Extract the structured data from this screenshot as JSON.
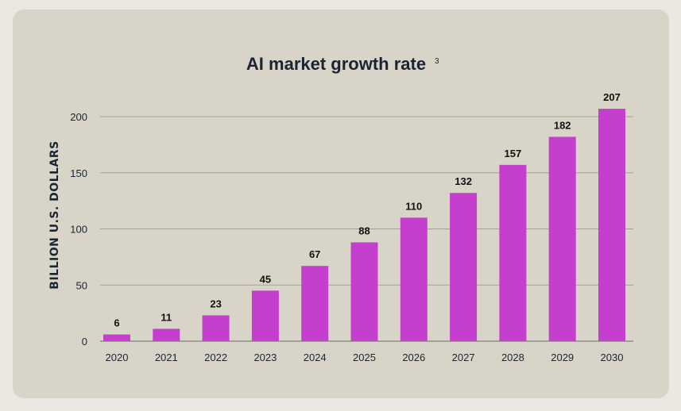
{
  "chart_data": {
    "type": "bar",
    "title": "AI market growth rate",
    "title_superscript": "3",
    "xlabel": "",
    "ylabel": "BILLION U.S. DOLLARS",
    "categories": [
      "2020",
      "2021",
      "2022",
      "2023",
      "2024",
      "2025",
      "2026",
      "2027",
      "2028",
      "2029",
      "2030"
    ],
    "values": [
      6,
      11,
      23,
      45,
      67,
      88,
      110,
      132,
      157,
      182,
      207
    ],
    "data_labels": [
      "6",
      "11",
      "23",
      "45",
      "67",
      "88",
      "110",
      "132",
      "157",
      "182",
      "207"
    ],
    "ylim": [
      0,
      200
    ],
    "yticks": [
      0,
      50,
      100,
      150,
      200
    ],
    "ytick_labels": [
      "0",
      "50",
      "100",
      "150",
      "200"
    ],
    "grid": true,
    "legend": "none",
    "bar_color": "#c43fcd"
  }
}
